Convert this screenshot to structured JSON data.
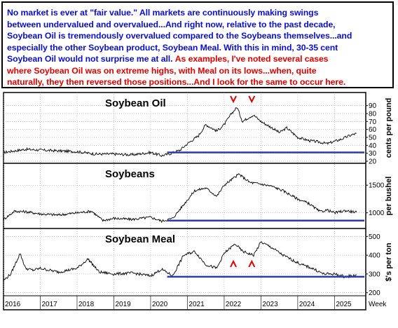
{
  "note": {
    "line1": "No market is ever at \"fair value.\" All markets are continuously making swings",
    "line2": "between undervalued and overvalued...And right now, relative to the past decade,",
    "line3": "Soybean Oil is tremendously overvalued compared to the Soybeans themselves...and",
    "line4": "especially the other Soybean product, Soybean Meal. With this in mind, 30-35 cent",
    "line5_blue": "Soybean Oil would not surprise me at all.",
    "line5_red": "As examples, I've noted several cases",
    "line6": "where Soybean Oil  was on extreme highs, with Meal on its lows...when, quite",
    "line7": "naturally,  they then reversed those positions...And I look for the same to occur here."
  },
  "colors": {
    "note_blue": "#0b10c8",
    "note_red": "#e00000",
    "price_line": "#000000",
    "support_line": "#2e3aa8",
    "marker": "#e00000",
    "grid": "#9a9a9a"
  },
  "chart_data": [
    {
      "type": "line",
      "title": "Soybean Oil",
      "ylabel": "cents per pound",
      "yticks": [
        20,
        30,
        40,
        50,
        60,
        70,
        80,
        90
      ],
      "ylim": [
        20,
        95
      ],
      "x_years": [
        "2016",
        "2017",
        "2018",
        "2019",
        "2020",
        "2021",
        "2022",
        "2023",
        "2024",
        "2025"
      ],
      "series": [
        {
          "x": [
            2016.0,
            2016.3,
            2016.6,
            2017.0,
            2017.5,
            2018.0,
            2018.5,
            2019.0,
            2019.5,
            2020.0,
            2020.3,
            2020.5,
            2020.8,
            2021.0,
            2021.3,
            2021.5,
            2021.8,
            2022.0,
            2022.2,
            2022.35,
            2022.5,
            2022.7,
            2022.8,
            2023.0,
            2023.3,
            2023.5,
            2023.7,
            2024.0,
            2024.3,
            2024.6,
            2024.8,
            2025.0,
            2025.2,
            2025.4,
            2025.6
          ],
          "values": [
            31,
            33,
            35,
            34,
            33,
            32,
            29,
            29,
            28,
            31,
            27,
            29,
            34,
            42,
            52,
            66,
            58,
            66,
            80,
            88,
            70,
            76,
            78,
            70,
            62,
            56,
            62,
            50,
            46,
            44,
            42,
            45,
            48,
            52,
            55
          ]
        }
      ],
      "support_level": 31,
      "markers": [
        {
          "x": 2022.25,
          "label": "v"
        },
        {
          "x": 2022.75,
          "label": "v"
        }
      ]
    },
    {
      "type": "line",
      "title": "Soybeans",
      "ylabel": "per bushel",
      "yticks": [
        1000,
        1500
      ],
      "ylim": [
        780,
        1820
      ],
      "series": [
        {
          "x": [
            2016.0,
            2016.3,
            2016.6,
            2017.0,
            2017.5,
            2018.0,
            2018.4,
            2018.7,
            2019.0,
            2019.5,
            2020.0,
            2020.3,
            2020.6,
            2020.9,
            2021.2,
            2021.5,
            2021.8,
            2022.0,
            2022.4,
            2022.7,
            2023.0,
            2023.3,
            2023.6,
            2024.0,
            2024.3,
            2024.6,
            2024.8,
            2025.0,
            2025.3,
            2025.6
          ],
          "values": [
            880,
            1030,
            1020,
            980,
            960,
            1000,
            1030,
            860,
            900,
            880,
            920,
            850,
            900,
            1150,
            1400,
            1450,
            1300,
            1500,
            1700,
            1550,
            1520,
            1480,
            1400,
            1250,
            1170,
            1020,
            1050,
            1000,
            1040,
            1010
          ]
        }
      ],
      "support_level": 860
    },
    {
      "type": "line",
      "title": "Soybean Meal",
      "ylabel": "$'s per ton",
      "yticks": [
        200,
        300,
        400,
        500
      ],
      "ylim": [
        195,
        520
      ],
      "series": [
        {
          "x": [
            2016.0,
            2016.2,
            2016.45,
            2016.6,
            2016.8,
            2017.0,
            2017.5,
            2018.0,
            2018.3,
            2018.6,
            2019.0,
            2019.5,
            2020.0,
            2020.3,
            2020.6,
            2020.9,
            2021.2,
            2021.5,
            2021.8,
            2022.0,
            2022.3,
            2022.5,
            2022.8,
            2023.0,
            2023.3,
            2023.6,
            2023.9,
            2024.1,
            2024.4,
            2024.7,
            2025.0,
            2025.3,
            2025.6
          ],
          "values": [
            265,
            300,
            410,
            330,
            320,
            330,
            310,
            330,
            380,
            310,
            300,
            305,
            290,
            325,
            290,
            400,
            420,
            350,
            330,
            410,
            460,
            420,
            400,
            470,
            440,
            400,
            370,
            350,
            330,
            300,
            300,
            285,
            295
          ]
        }
      ],
      "support_level": 285,
      "markers": [
        {
          "x": 2022.25,
          "label": "^"
        },
        {
          "x": 2022.75,
          "label": "^"
        }
      ]
    }
  ],
  "x_axis_end_label": "Week"
}
